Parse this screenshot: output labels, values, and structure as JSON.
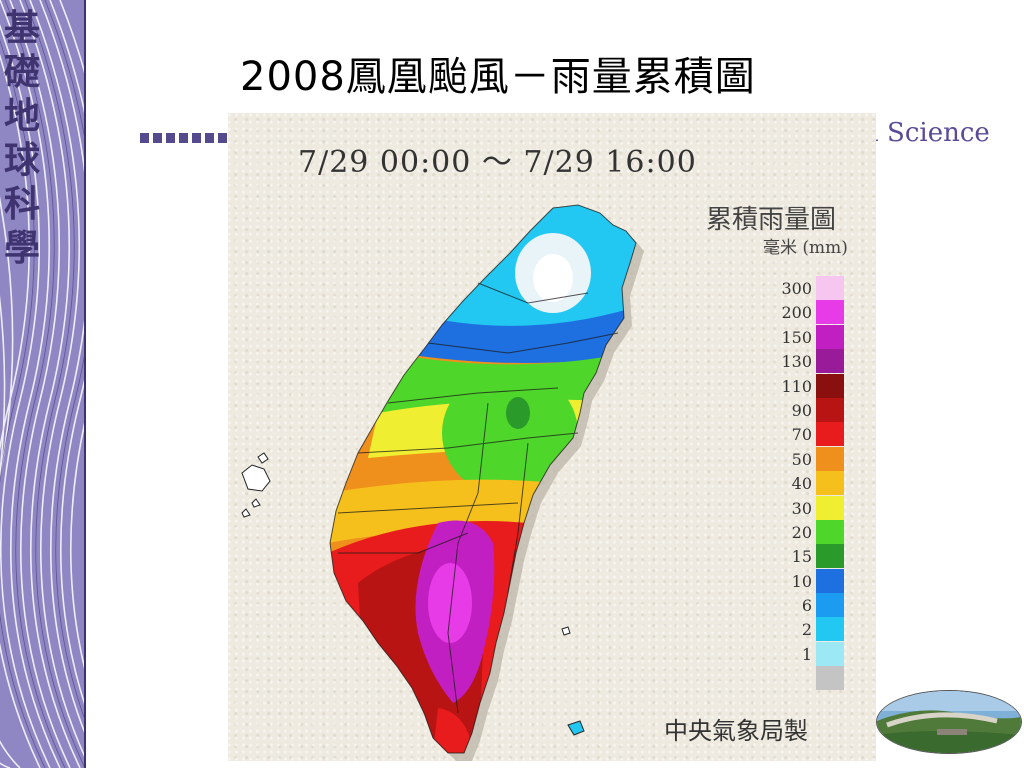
{
  "sidebar": {
    "vertical_title": [
      "基",
      "礎",
      "地",
      "球",
      "科",
      "學"
    ]
  },
  "header": {
    "title": "2008鳳凰颱風－雨量累積圖",
    "subtitle_fragment": "h Science"
  },
  "map": {
    "time_range": "7/29 00:00 ～ 7/29 16:00",
    "legend_title": "累積雨量圖",
    "legend_unit": "毫米 (mm)",
    "credit": "中央氣象局製",
    "legend": [
      {
        "label": "300",
        "color": "#f7c6f0"
      },
      {
        "label": "200",
        "color": "#e63be6"
      },
      {
        "label": "150",
        "color": "#c21fc2"
      },
      {
        "label": "130",
        "color": "#9a1b9a"
      },
      {
        "label": "110",
        "color": "#8a1010"
      },
      {
        "label": "90",
        "color": "#b81414"
      },
      {
        "label": "70",
        "color": "#e81c1c"
      },
      {
        "label": "50",
        "color": "#f0901c"
      },
      {
        "label": "40",
        "color": "#f5c01c"
      },
      {
        "label": "30",
        "color": "#f0ee30"
      },
      {
        "label": "20",
        "color": "#4fd62a"
      },
      {
        "label": "15",
        "color": "#2a9a2a"
      },
      {
        "label": "10",
        "color": "#1e6fe0"
      },
      {
        "label": "6",
        "color": "#1c9cf0"
      },
      {
        "label": "2",
        "color": "#22c8f2"
      },
      {
        "label": "1",
        "color": "#9ce8f5"
      },
      {
        "label": "",
        "color": "#c4c4c4"
      }
    ]
  }
}
